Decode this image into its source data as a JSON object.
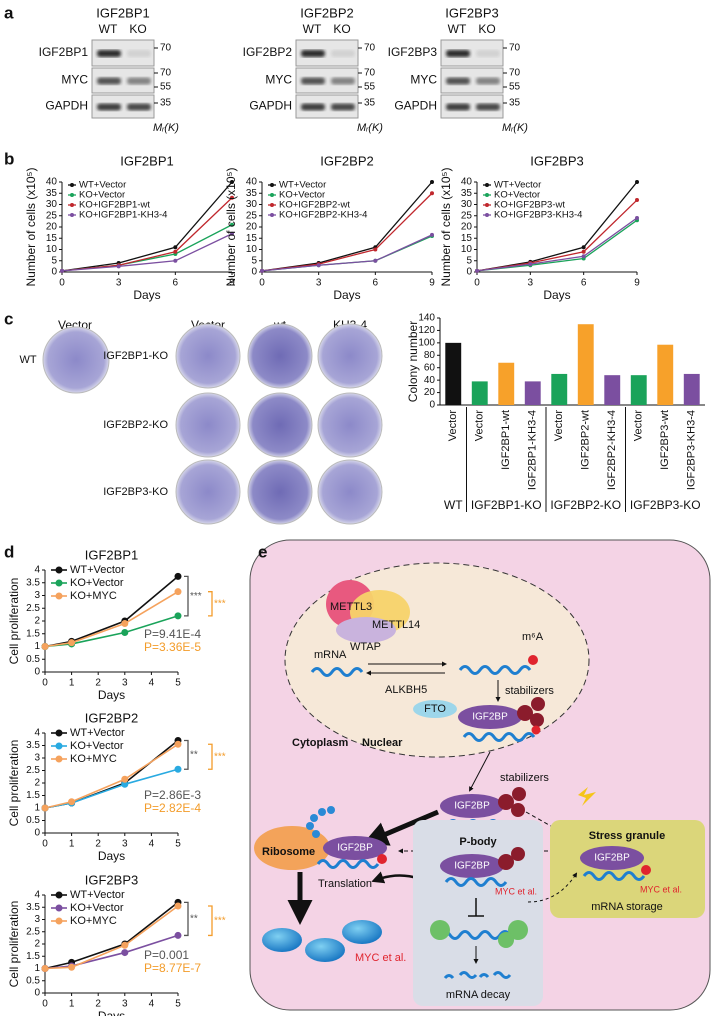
{
  "panel_labels": [
    "a",
    "b",
    "c",
    "d",
    "e"
  ],
  "blots": [
    {
      "title": "IGF2BP1",
      "lanes": [
        "WT",
        "KO"
      ],
      "rows": [
        "IGF2BP1",
        "MYC",
        "GAPDH"
      ],
      "markers": [
        70,
        70,
        55,
        35
      ],
      "unit": "Mᵣ(K)"
    },
    {
      "title": "IGF2BP2",
      "lanes": [
        "WT",
        "KO"
      ],
      "rows": [
        "IGF2BP2",
        "MYC",
        "GAPDH"
      ],
      "markers": [
        70,
        70,
        55,
        35
      ],
      "unit": "Mᵣ(K)"
    },
    {
      "title": "IGF2BP3",
      "lanes": [
        "WT",
        "KO"
      ],
      "rows": [
        "IGF2BP3",
        "MYC",
        "GAPDH"
      ],
      "markers": [
        70,
        70,
        55,
        35
      ],
      "unit": "Mᵣ(K)"
    }
  ],
  "plates": {
    "wt": {
      "column": "Vector",
      "row": "WT"
    },
    "ko": {
      "columns": [
        "Vector",
        "wt",
        "KH3-4"
      ],
      "rows": [
        "IGF2BP1-KO",
        "IGF2BP2-KO",
        "IGF2BP3-KO"
      ]
    }
  },
  "chart_data": [
    {
      "type": "line",
      "title": "IGF2BP1",
      "xlabel": "Days",
      "ylabel": "Number of cells (x10⁵)",
      "x": [
        0,
        3,
        6,
        9
      ],
      "xlim": [
        0,
        9
      ],
      "xticks": [
        0,
        3,
        6,
        9
      ],
      "ylim": [
        0,
        40
      ],
      "yticks": [
        0,
        5,
        10,
        15,
        20,
        25,
        30,
        35,
        40
      ],
      "legend": "upper left",
      "series": [
        {
          "name": "WT+Vector",
          "color": "#111111",
          "values": [
            0.5,
            4,
            11,
            40
          ]
        },
        {
          "name": "KO+Vector",
          "color": "#1aa35a",
          "values": [
            0.5,
            3,
            8,
            21
          ]
        },
        {
          "name": "KO+IGF2BP1-wt",
          "color": "#c0272d",
          "values": [
            0.5,
            3,
            9,
            33
          ]
        },
        {
          "name": "KO+IGF2BP1-KH3-4",
          "color": "#7b4fa0",
          "values": [
            0.5,
            2.5,
            5,
            17
          ]
        }
      ]
    },
    {
      "type": "line",
      "title": "IGF2BP2",
      "xlabel": "Days",
      "ylabel": "Number of cells (x10⁵)",
      "x": [
        0,
        3,
        6,
        9
      ],
      "xlim": [
        0,
        9
      ],
      "xticks": [
        0,
        3,
        6,
        9
      ],
      "ylim": [
        0,
        40
      ],
      "yticks": [
        0,
        5,
        10,
        15,
        20,
        25,
        30,
        35,
        40
      ],
      "legend": "upper left",
      "series": [
        {
          "name": "WT+Vector",
          "color": "#111111",
          "values": [
            0.5,
            4,
            11,
            40
          ]
        },
        {
          "name": "KO+Vector",
          "color": "#1aa35a",
          "values": [
            0.5,
            3,
            5,
            16
          ]
        },
        {
          "name": "KO+IGF2BP2-wt",
          "color": "#c0272d",
          "values": [
            0.5,
            3.5,
            10,
            35
          ]
        },
        {
          "name": "KO+IGF2BP2-KH3-4",
          "color": "#7b4fa0",
          "values": [
            0.5,
            3,
            5,
            16.5
          ]
        }
      ]
    },
    {
      "type": "line",
      "title": "IGF2BP3",
      "xlabel": "Days",
      "ylabel": "Number of cells (x10⁵)",
      "x": [
        0,
        3,
        6,
        9
      ],
      "xlim": [
        0,
        9
      ],
      "xticks": [
        0,
        3,
        6,
        9
      ],
      "ylim": [
        0,
        40
      ],
      "yticks": [
        0,
        5,
        10,
        15,
        20,
        25,
        30,
        35,
        40
      ],
      "legend": "upper left",
      "series": [
        {
          "name": "WT+Vector",
          "color": "#111111",
          "values": [
            0.5,
            4.5,
            11,
            40
          ]
        },
        {
          "name": "KO+Vector",
          "color": "#1aa35a",
          "values": [
            0.5,
            3,
            6,
            23
          ]
        },
        {
          "name": "KO+IGF2BP3-wt",
          "color": "#c0272d",
          "values": [
            0.5,
            4,
            9,
            32
          ]
        },
        {
          "name": "KO+IGF2BP3-KH3-4",
          "color": "#7b4fa0",
          "values": [
            0.5,
            3.5,
            7,
            24
          ]
        }
      ]
    },
    {
      "type": "bar",
      "ylabel": "Colony number",
      "ylim": [
        0,
        140
      ],
      "yticks": [
        0,
        20,
        40,
        60,
        80,
        100,
        120,
        140
      ],
      "groups": [
        {
          "label": "WT",
          "categories": [
            "Vector"
          ],
          "values": [
            100
          ],
          "colors": [
            "#111111"
          ]
        },
        {
          "label": "IGF2BP1-KO",
          "categories": [
            "Vector",
            "IGF2BP1-wt",
            "IGF2BP1-KH3-4"
          ],
          "values": [
            38,
            68,
            38
          ],
          "colors": [
            "#1aa35a",
            "#f7a12a",
            "#7b4fa0"
          ]
        },
        {
          "label": "IGF2BP2-KO",
          "categories": [
            "Vector",
            "IGF2BP2-wt",
            "IGF2BP2-KH3-4"
          ],
          "values": [
            50,
            130,
            48
          ],
          "colors": [
            "#1aa35a",
            "#f7a12a",
            "#7b4fa0"
          ]
        },
        {
          "label": "IGF2BP3-KO",
          "categories": [
            "Vector",
            "IGF2BP3-wt",
            "IGF2BP3-KH3-4"
          ],
          "values": [
            48,
            97,
            50
          ],
          "colors": [
            "#1aa35a",
            "#f7a12a",
            "#7b4fa0"
          ]
        }
      ]
    },
    {
      "type": "line",
      "title": "IGF2BP1",
      "xlabel": "Days",
      "ylabel": "Cell proliferation",
      "x": [
        0,
        1,
        3,
        5
      ],
      "xlim": [
        0,
        5
      ],
      "xticks": [
        0,
        1,
        2,
        3,
        4,
        5
      ],
      "ylim": [
        0,
        4
      ],
      "yticks": [
        0,
        0.5,
        1,
        1.5,
        2,
        2.5,
        3,
        3.5,
        4
      ],
      "legend": "upper left",
      "series": [
        {
          "name": "WT+Vector",
          "color": "#111111",
          "values": [
            1,
            1.2,
            2,
            3.75
          ]
        },
        {
          "name": "KO+Vector",
          "color": "#1aa35a",
          "values": [
            1,
            1.1,
            1.55,
            2.2
          ]
        },
        {
          "name": "KO+MYC",
          "color": "#f5a25d",
          "values": [
            1,
            1.15,
            1.9,
            3.15
          ]
        }
      ],
      "significance": [
        {
          "label": "***",
          "p": "P=9.41E-4",
          "color": "#555555"
        },
        {
          "label": "***",
          "p": "P=3.36E-5",
          "color": "#f39c2a"
        }
      ]
    },
    {
      "type": "line",
      "title": "IGF2BP2",
      "xlabel": "Days",
      "ylabel": "Cell proliferation",
      "x": [
        0,
        1,
        3,
        5
      ],
      "xlim": [
        0,
        5
      ],
      "xticks": [
        0,
        1,
        2,
        3,
        4,
        5
      ],
      "ylim": [
        0,
        4
      ],
      "yticks": [
        0,
        0.5,
        1,
        1.5,
        2,
        2.5,
        3,
        3.5,
        4
      ],
      "legend": "upper left",
      "series": [
        {
          "name": "WT+Vector",
          "color": "#111111",
          "values": [
            1,
            1.2,
            2,
            3.7
          ]
        },
        {
          "name": "KO+Vector",
          "color": "#29aae1",
          "values": [
            1,
            1.2,
            1.95,
            2.55
          ]
        },
        {
          "name": "KO+MYC",
          "color": "#f5a25d",
          "values": [
            1,
            1.25,
            2.15,
            3.55
          ]
        }
      ],
      "significance": [
        {
          "label": "**",
          "p": "P=2.86E-3",
          "color": "#555555"
        },
        {
          "label": "***",
          "p": "P=2.82E-4",
          "color": "#f39c2a"
        }
      ]
    },
    {
      "type": "line",
      "title": "IGF2BP3",
      "xlabel": "Days",
      "ylabel": "Cell proliferation",
      "x": [
        0,
        1,
        3,
        5
      ],
      "xlim": [
        0,
        5
      ],
      "xticks": [
        0,
        1,
        2,
        3,
        4,
        5
      ],
      "ylim": [
        0,
        4
      ],
      "yticks": [
        0,
        0.5,
        1,
        1.5,
        2,
        2.5,
        3,
        3.5,
        4
      ],
      "legend": "upper left",
      "series": [
        {
          "name": "WT+Vector",
          "color": "#111111",
          "values": [
            1,
            1.25,
            2,
            3.7
          ]
        },
        {
          "name": "KO+Vector",
          "color": "#7b4fa0",
          "values": [
            1,
            1.1,
            1.65,
            2.35
          ]
        },
        {
          "name": "KO+MYC",
          "color": "#f5a25d",
          "values": [
            1,
            1.05,
            1.95,
            3.55
          ]
        }
      ],
      "significance": [
        {
          "label": "**",
          "p": "P=0.001",
          "color": "#555555"
        },
        {
          "label": "***",
          "p": "P=8.77E-7",
          "color": "#f39c2a"
        }
      ]
    }
  ],
  "diagram": {
    "mettl3": "METTL3",
    "mettl14": "METTL14",
    "wtap": "WTAP",
    "m6a": "m⁶A",
    "mrna": "mRNA",
    "alkbh5": "ALKBH5",
    "fto": "FTO",
    "stabilizers_nuclear": "stabilizers",
    "igf2bp_nuclear": "IGF2BP",
    "cytoplasm": "Cytoplasm",
    "nuclear": "Nuclear",
    "stabilizers_cyto": "stabilizers",
    "igf2bp_cyto": "IGF2BP",
    "ribosome": "Ribosome",
    "igf2bp_ribosome": "IGF2BP",
    "translation": "Translation",
    "myc_translation": "MYC et al.",
    "pbody": "P-body",
    "igf2bp_pbody": "IGF2BP",
    "myc_pbody": "MYC et al.",
    "mrna_decay": "mRNA decay",
    "stress_granule": "Stress granule",
    "igf2bp_sg": "IGF2BP",
    "myc_sg": "MYC et al.",
    "mrna_storage": "mRNA storage"
  }
}
